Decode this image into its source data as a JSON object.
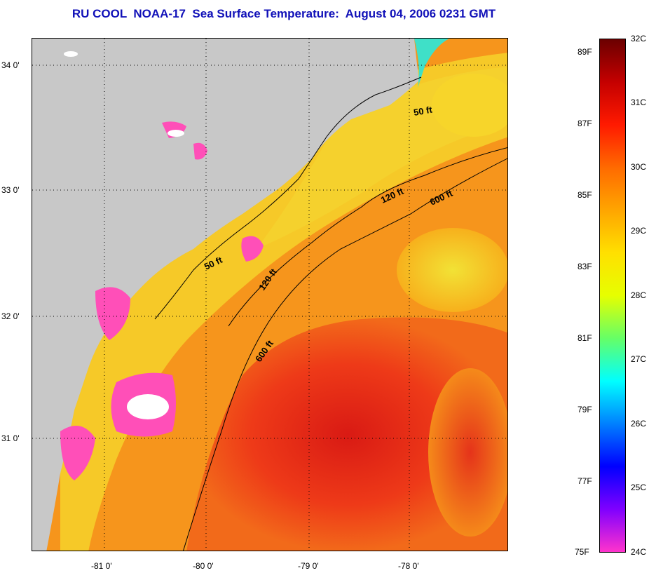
{
  "title": "RU COOL  NOAA-17  Sea Surface Temperature:  August 04, 2006 0231 GMT",
  "map": {
    "lon_ticks": [
      "-81 0'",
      "-80 0'",
      "-79 0'",
      "-78 0'"
    ],
    "lat_ticks": [
      "34 0'",
      "33 0'",
      "32 0'",
      "31 0'"
    ],
    "contour_labels": [
      {
        "name": "contour-label-50ft-north",
        "text": "50 ft"
      },
      {
        "name": "contour-label-120ft-north",
        "text": "120 ft"
      },
      {
        "name": "contour-label-600ft-north",
        "text": "600 ft"
      },
      {
        "name": "contour-label-50ft-south",
        "text": "50 ft"
      },
      {
        "name": "contour-label-120ft-south",
        "text": "120 ft"
      },
      {
        "name": "contour-label-600ft-south",
        "text": "600 ft"
      }
    ],
    "colors": {
      "land": "#c8c8c8",
      "ocean_warm": "#f79a1a",
      "ocean_hot": "#e8281c",
      "cloud": "#ff4fb8"
    }
  },
  "colorbar": {
    "celsius": [
      "32C",
      "31C",
      "30C",
      "29C",
      "28C",
      "27C",
      "26C",
      "25C",
      "24C"
    ],
    "fahrenheit": [
      "89F",
      "87F",
      "85F",
      "83F",
      "81F",
      "79F",
      "77F",
      "75F"
    ],
    "gradient": [
      "#6b0000",
      "#c40000",
      "#ff1a00",
      "#ff6a00",
      "#ffa500",
      "#ffe000",
      "#e6ff00",
      "#66ff66",
      "#00ffff",
      "#0080ff",
      "#0000ff",
      "#8000ff",
      "#ff33cc"
    ]
  }
}
